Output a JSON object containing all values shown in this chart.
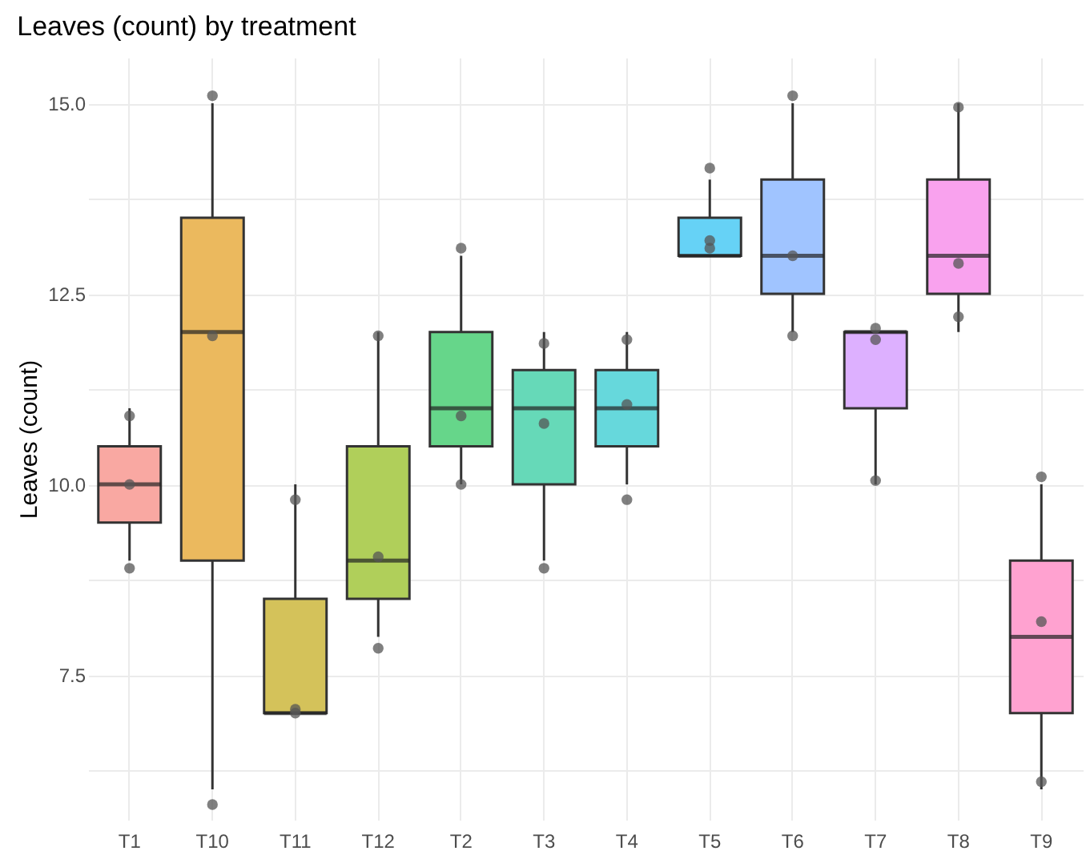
{
  "chart_data": {
    "type": "box",
    "title": "Leaves (count) by treatment",
    "ylabel": "Leaves (count)",
    "categories": [
      "T1",
      "T10",
      "T11",
      "T12",
      "T2",
      "T3",
      "T4",
      "T5",
      "T6",
      "T7",
      "T8",
      "T9"
    ],
    "colors": [
      "#f9a8a2",
      "#ebb95e",
      "#d4c25a",
      "#b0cf5a",
      "#66d68a",
      "#66d9b8",
      "#66d8dc",
      "#66d2f6",
      "#a0c4ff",
      "#ddb0ff",
      "#f9a2ee",
      "#ffa2d0"
    ],
    "boxes": [
      {
        "low": 9,
        "q1": 9.5,
        "median": 10,
        "q3": 10.5,
        "high": 11
      },
      {
        "low": 6,
        "q1": 9,
        "median": 12,
        "q3": 13.5,
        "high": 15
      },
      {
        "low": 7,
        "q1": 7,
        "median": 7,
        "q3": 8.5,
        "high": 10
      },
      {
        "low": 8,
        "q1": 8.5,
        "median": 9,
        "q3": 10.5,
        "high": 12
      },
      {
        "low": 10,
        "q1": 10.5,
        "median": 11,
        "q3": 12,
        "high": 13
      },
      {
        "low": 9,
        "q1": 10,
        "median": 11,
        "q3": 11.5,
        "high": 12
      },
      {
        "low": 10,
        "q1": 10.5,
        "median": 11,
        "q3": 11.5,
        "high": 12
      },
      {
        "low": 13,
        "q1": 13,
        "median": 13,
        "q3": 13.5,
        "high": 14
      },
      {
        "low": 12,
        "q1": 12.5,
        "median": 13,
        "q3": 14,
        "high": 15
      },
      {
        "low": 10,
        "q1": 11,
        "median": 12,
        "q3": 12,
        "high": 12
      },
      {
        "low": 12,
        "q1": 12.5,
        "median": 13,
        "q3": 14,
        "high": 15
      },
      {
        "low": 6,
        "q1": 7,
        "median": 8,
        "q3": 9,
        "high": 10
      }
    ],
    "series": [
      {
        "type": "scatter",
        "color": "#555555",
        "x": [
          "T1",
          "T1",
          "T1",
          "T10",
          "T10",
          "T10",
          "T11",
          "T11",
          "T11",
          "T12",
          "T12",
          "T12",
          "T2",
          "T2",
          "T2",
          "T3",
          "T3",
          "T3",
          "T4",
          "T4",
          "T4",
          "T5",
          "T5",
          "T5",
          "T6",
          "T6",
          "T6",
          "T7",
          "T7",
          "T7",
          "T8",
          "T8",
          "T8",
          "T9",
          "T9",
          "T9"
        ],
        "values": [
          8.9,
          10,
          10.9,
          5.8,
          11.95,
          15.1,
          7,
          7.05,
          9.8,
          7.85,
          9.05,
          11.95,
          10,
          10.9,
          13.1,
          8.9,
          10.8,
          11.85,
          9.8,
          11.05,
          11.9,
          13.2,
          13.1,
          14.15,
          11.95,
          13,
          15.1,
          10.05,
          11.9,
          12.05,
          12.2,
          12.9,
          14.95,
          6.1,
          8.2,
          10.1
        ]
      }
    ],
    "ylim": [
      5.6,
      15.6
    ],
    "yticks": [
      {
        "value": 6.25,
        "label": null
      },
      {
        "value": 7.5,
        "label": "7.5"
      },
      {
        "value": 8.75,
        "label": null
      },
      {
        "value": 10,
        "label": "10.0"
      },
      {
        "value": 11.25,
        "label": null
      },
      {
        "value": 12.5,
        "label": "12.5"
      },
      {
        "value": 13.75,
        "label": null
      },
      {
        "value": 15,
        "label": "15.0"
      }
    ],
    "grid": true
  }
}
